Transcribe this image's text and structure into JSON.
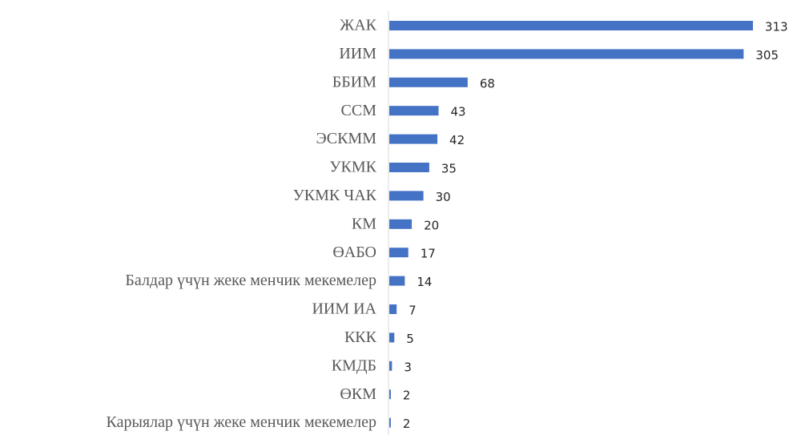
{
  "chart_data": {
    "type": "bar",
    "orientation": "horizontal",
    "categories": [
      "ЖАК",
      "ИИМ",
      "ББИМ",
      "ССМ",
      "ЭСКММ",
      "УКМК",
      "УКМК ЧАК",
      "КМ",
      "ӨАБО",
      "Балдар үчүн жеке менчик мекемелер",
      "ИИМ ИА",
      "ККК",
      "КМДБ",
      "ӨКМ",
      "Карыялар үчүн жеке менчик мекемелер"
    ],
    "values": [
      313,
      305,
      68,
      43,
      42,
      35,
      30,
      20,
      17,
      14,
      7,
      5,
      3,
      2,
      2
    ],
    "color": "#4472c4",
    "grid": false
  }
}
